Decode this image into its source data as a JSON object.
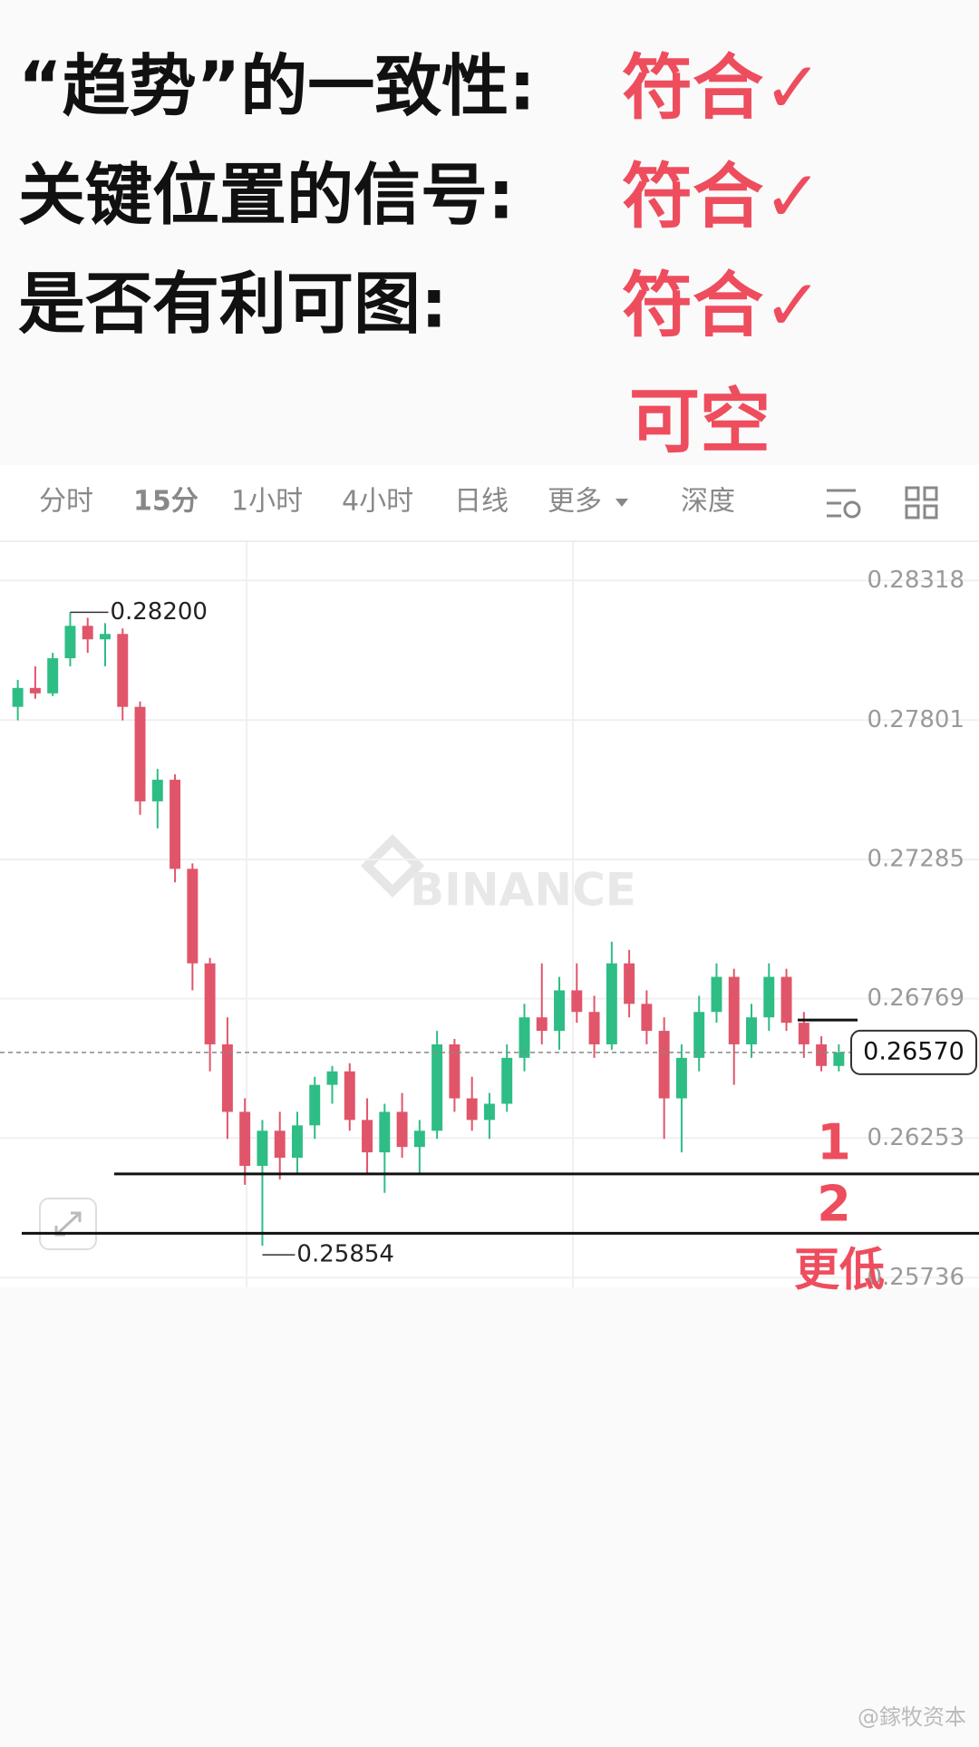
{
  "header": {
    "rows": [
      {
        "label": "“趋势”的一致性:",
        "status": "符合✓"
      },
      {
        "label": "关键位置的信号:",
        "status": "符合✓"
      },
      {
        "label": "是否有利可图:",
        "status": "符合✓"
      }
    ],
    "conclusion": "可空"
  },
  "toolbar": {
    "tabs": [
      "分时",
      "15分",
      "1小时",
      "4小时",
      "日线",
      "更多",
      "深度"
    ],
    "active": 1
  },
  "chart_data": {
    "type": "candlestick",
    "watermark": "BINANCE",
    "up_color": "#2ebd85",
    "down_color": "#e0556a",
    "candles": [
      {
        "open": 0.2785,
        "high": 0.2795,
        "low": 0.278,
        "close": 0.2792
      },
      {
        "open": 0.2792,
        "high": 0.28,
        "low": 0.2788,
        "close": 0.279
      },
      {
        "open": 0.279,
        "high": 0.2805,
        "low": 0.2789,
        "close": 0.2803
      },
      {
        "open": 0.2803,
        "high": 0.282,
        "low": 0.28,
        "close": 0.2815
      },
      {
        "open": 0.2815,
        "high": 0.2818,
        "low": 0.2805,
        "close": 0.281
      },
      {
        "open": 0.281,
        "high": 0.2816,
        "low": 0.28,
        "close": 0.2812
      },
      {
        "open": 0.2812,
        "high": 0.2814,
        "low": 0.278,
        "close": 0.2785
      },
      {
        "open": 0.2785,
        "high": 0.2787,
        "low": 0.2745,
        "close": 0.275
      },
      {
        "open": 0.275,
        "high": 0.2762,
        "low": 0.274,
        "close": 0.2758
      },
      {
        "open": 0.2758,
        "high": 0.276,
        "low": 0.272,
        "close": 0.2725
      },
      {
        "open": 0.2725,
        "high": 0.2727,
        "low": 0.268,
        "close": 0.269
      },
      {
        "open": 0.269,
        "high": 0.2692,
        "low": 0.265,
        "close": 0.266
      },
      {
        "open": 0.266,
        "high": 0.267,
        "low": 0.2625,
        "close": 0.2635
      },
      {
        "open": 0.2635,
        "high": 0.264,
        "low": 0.2608,
        "close": 0.2615
      },
      {
        "open": 0.2615,
        "high": 0.2632,
        "low": 0.25854,
        "close": 0.2628
      },
      {
        "open": 0.2628,
        "high": 0.2635,
        "low": 0.261,
        "close": 0.2618
      },
      {
        "open": 0.2618,
        "high": 0.2635,
        "low": 0.2612,
        "close": 0.263
      },
      {
        "open": 0.263,
        "high": 0.2648,
        "low": 0.2625,
        "close": 0.2645
      },
      {
        "open": 0.2645,
        "high": 0.2652,
        "low": 0.2638,
        "close": 0.265
      },
      {
        "open": 0.265,
        "high": 0.2653,
        "low": 0.2628,
        "close": 0.2632
      },
      {
        "open": 0.2632,
        "high": 0.264,
        "low": 0.2612,
        "close": 0.262
      },
      {
        "open": 0.262,
        "high": 0.2638,
        "low": 0.2605,
        "close": 0.2635
      },
      {
        "open": 0.2635,
        "high": 0.2642,
        "low": 0.2618,
        "close": 0.2622
      },
      {
        "open": 0.2622,
        "high": 0.2632,
        "low": 0.2612,
        "close": 0.2628
      },
      {
        "open": 0.2628,
        "high": 0.2665,
        "low": 0.2625,
        "close": 0.266
      },
      {
        "open": 0.266,
        "high": 0.2662,
        "low": 0.2635,
        "close": 0.264
      },
      {
        "open": 0.264,
        "high": 0.2648,
        "low": 0.2628,
        "close": 0.2632
      },
      {
        "open": 0.2632,
        "high": 0.2642,
        "low": 0.2625,
        "close": 0.2638
      },
      {
        "open": 0.2638,
        "high": 0.266,
        "low": 0.2635,
        "close": 0.2655
      },
      {
        "open": 0.2655,
        "high": 0.2675,
        "low": 0.265,
        "close": 0.267
      },
      {
        "open": 0.267,
        "high": 0.269,
        "low": 0.266,
        "close": 0.2665
      },
      {
        "open": 0.2665,
        "high": 0.2685,
        "low": 0.2658,
        "close": 0.268
      },
      {
        "open": 0.268,
        "high": 0.269,
        "low": 0.2668,
        "close": 0.2672
      },
      {
        "open": 0.2672,
        "high": 0.2678,
        "low": 0.2655,
        "close": 0.266
      },
      {
        "open": 0.266,
        "high": 0.2698,
        "low": 0.2658,
        "close": 0.269
      },
      {
        "open": 0.269,
        "high": 0.2695,
        "low": 0.267,
        "close": 0.2675
      },
      {
        "open": 0.2675,
        "high": 0.268,
        "low": 0.266,
        "close": 0.2665
      },
      {
        "open": 0.2665,
        "high": 0.267,
        "low": 0.2625,
        "close": 0.264
      },
      {
        "open": 0.264,
        "high": 0.266,
        "low": 0.262,
        "close": 0.2655
      },
      {
        "open": 0.2655,
        "high": 0.2678,
        "low": 0.265,
        "close": 0.2672
      },
      {
        "open": 0.2672,
        "high": 0.269,
        "low": 0.2668,
        "close": 0.2685
      },
      {
        "open": 0.2685,
        "high": 0.2688,
        "low": 0.2645,
        "close": 0.266
      },
      {
        "open": 0.266,
        "high": 0.2675,
        "low": 0.2655,
        "close": 0.267
      },
      {
        "open": 0.267,
        "high": 0.269,
        "low": 0.2665,
        "close": 0.2685
      },
      {
        "open": 0.2685,
        "high": 0.2688,
        "low": 0.2665,
        "close": 0.2668
      },
      {
        "open": 0.2668,
        "high": 0.2672,
        "low": 0.2655,
        "close": 0.266
      },
      {
        "open": 0.266,
        "high": 0.2663,
        "low": 0.265,
        "close": 0.2652
      },
      {
        "open": 0.2652,
        "high": 0.266,
        "low": 0.265,
        "close": 0.2657
      }
    ],
    "ylim": [
      0.257,
      0.2846
    ],
    "yticks": [
      0.28318,
      0.27801,
      0.27285,
      0.26769,
      0.26253,
      0.25736
    ],
    "high_label": {
      "value": 0.282,
      "label": "0.28200"
    },
    "low_label": {
      "value": 0.25854,
      "label": "0.25854"
    },
    "last_price": {
      "value": 0.2657,
      "label": "0.26570"
    },
    "hlines": [
      0.2612,
      0.259,
      0.2669
    ],
    "annotations": [
      "1",
      "2",
      "更低"
    ]
  },
  "footer": "@鎵牧资本"
}
